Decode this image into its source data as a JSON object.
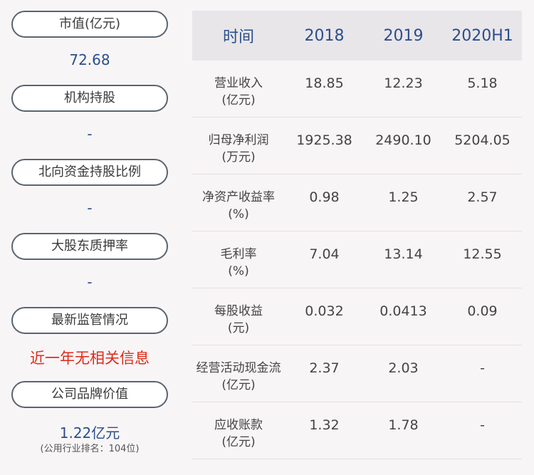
{
  "left": {
    "market_cap_label": "市值(亿元)",
    "market_cap_value": "72.68",
    "institution_label": "机构持股",
    "institution_value": "-",
    "northbound_label": "北向资金持股比例",
    "northbound_value": "-",
    "pledge_label": "大股东质押率",
    "pledge_value": "-",
    "regulation_label": "最新监管情况",
    "regulation_value": "近一年无相关信息",
    "brand_label": "公司品牌价值",
    "brand_value": "1.22亿元",
    "brand_rank": "(公用行业排名：104位)"
  },
  "table": {
    "header": [
      "时间",
      "2018",
      "2019",
      "2020H1"
    ],
    "rows": [
      {
        "label_line1": "营业收入",
        "label_line2": "(亿元)",
        "values": [
          "18.85",
          "12.23",
          "5.18"
        ]
      },
      {
        "label_line1": "归母净利润",
        "label_line2": "(万元)",
        "values": [
          "1925.38",
          "2490.10",
          "5204.05"
        ]
      },
      {
        "label_line1": "净资产收益率",
        "label_line2": "(%)",
        "values": [
          "0.98",
          "1.25",
          "2.57"
        ]
      },
      {
        "label_line1": "毛利率",
        "label_line2": "(%)",
        "values": [
          "7.04",
          "13.14",
          "12.55"
        ]
      },
      {
        "label_line1": "每股收益",
        "label_line2": "(元)",
        "values": [
          "0.032",
          "0.0413",
          "0.09"
        ]
      },
      {
        "label_line1": "经营活动现金流",
        "label_line2": "(亿元)",
        "values": [
          "2.37",
          "2.03",
          "-"
        ]
      },
      {
        "label_line1": "应收账款",
        "label_line2": "(亿元)",
        "values": [
          "1.32",
          "1.78",
          "-"
        ]
      }
    ]
  },
  "colors": {
    "background": "#f8f5f7",
    "accent_blue": "#2a4f8a",
    "alert_red": "#e02a1a",
    "header_bg": "#e9e6ea"
  }
}
